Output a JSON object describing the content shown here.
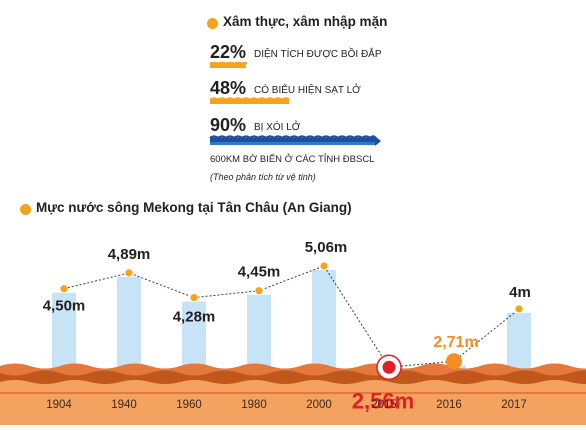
{
  "colors": {
    "accent": "#f7a21b",
    "bar": "#c6e4f6",
    "wave_dark": "#c1571b",
    "wave_mid": "#e4783d",
    "wave_light": "#f3a35f",
    "highlight_red": "#e31e24",
    "highlight_orange": "#f58d1f",
    "line": "#3a3a3a"
  },
  "erosion": {
    "title": "Xâm thực, xâm nhập mặn",
    "stats": [
      {
        "pct": "22%",
        "label": "DIỆN TÍCH ĐƯỢC BỒI ĐẮP",
        "fill": 0.22,
        "color": "#f7a21b"
      },
      {
        "pct": "48%",
        "label": "CÓ BIỂU HIỆN SẠT LỞ",
        "fill": 0.48,
        "color": "#f7a21b"
      },
      {
        "pct": "90%",
        "label": "BỊ XÓI LỞ",
        "fill": 0.9,
        "color": "#1e4e9c"
      }
    ],
    "total_label": "600KM BỜ BIỂN Ở CÁC TỈNH ĐBSCL",
    "note": "(Theo phân tích từ vệ tinh)"
  },
  "chart_data": {
    "type": "line",
    "title": "Mực nước sông Mekong tại Tân Châu (An Giang)",
    "categories": [
      "1904",
      "1940",
      "1960",
      "1980",
      "2000",
      "2015",
      "2016",
      "2017"
    ],
    "values": [
      4.5,
      4.89,
      4.28,
      4.45,
      5.06,
      2.56,
      2.71,
      4.0
    ],
    "value_labels": [
      "4,50m",
      "4,89m",
      "4,28m",
      "4,45m",
      "5,06m",
      "2,56m",
      "2,71m",
      "4m"
    ],
    "highlight": {
      "2015": "#e31e24",
      "2016": "#f58d1f"
    },
    "ylim": [
      0,
      5.5
    ],
    "grid": false,
    "legend": "none"
  }
}
